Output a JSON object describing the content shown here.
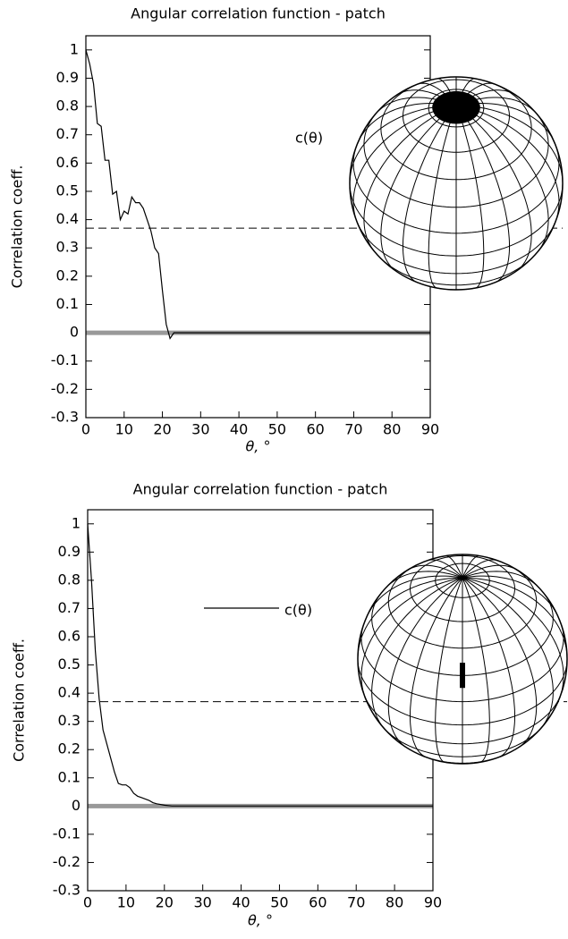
{
  "chart_data": [
    {
      "type": "line",
      "title": "Angular correlation function - patch",
      "xlabel": "θ, °",
      "ylabel": "Correlation coeff.",
      "xlim": [
        0,
        90
      ],
      "ylim": [
        -0.3,
        1.05
      ],
      "xticks": [
        0,
        10,
        20,
        30,
        40,
        50,
        60,
        70,
        80,
        90
      ],
      "yticks": [
        1,
        0.9,
        0.8,
        0.7,
        0.6,
        0.5,
        0.4,
        0.3,
        0.2,
        0.1,
        0,
        -0.1,
        -0.2,
        -0.3
      ],
      "legend_line": false,
      "reference_lines": [
        {
          "y": 0.37,
          "style": "dashed",
          "color": "#000000"
        },
        {
          "y": 0,
          "style": "solid",
          "color": "#999999"
        }
      ],
      "series": [
        {
          "name": "c(θ)",
          "color": "#000000",
          "x": [
            0,
            1,
            2,
            3,
            4,
            5,
            6,
            7,
            8,
            9,
            10,
            11,
            12,
            13,
            14,
            15,
            16,
            17,
            18,
            19,
            20,
            21,
            22,
            23,
            90
          ],
          "values": [
            1.0,
            0.95,
            0.88,
            0.74,
            0.73,
            0.61,
            0.61,
            0.49,
            0.5,
            0.4,
            0.43,
            0.42,
            0.48,
            0.46,
            0.46,
            0.44,
            0.4,
            0.36,
            0.3,
            0.28,
            0.15,
            0.03,
            -0.02,
            0.0,
            0.0
          ]
        }
      ]
    },
    {
      "type": "line",
      "title": "Angular correlation function - patch",
      "xlabel": "θ, °",
      "ylabel": "Correlation coeff.",
      "xlim": [
        0,
        90
      ],
      "ylim": [
        -0.3,
        1.05
      ],
      "xticks": [
        0,
        10,
        20,
        30,
        40,
        50,
        60,
        70,
        80,
        90
      ],
      "yticks": [
        1,
        0.9,
        0.8,
        0.7,
        0.6,
        0.5,
        0.4,
        0.3,
        0.2,
        0.1,
        0,
        -0.1,
        -0.2,
        -0.3
      ],
      "legend_line": true,
      "reference_lines": [
        {
          "y": 0.37,
          "style": "dashed",
          "color": "#000000"
        },
        {
          "y": 0,
          "style": "solid",
          "color": "#999999"
        }
      ],
      "series": [
        {
          "name": "c(θ)",
          "color": "#000000",
          "x": [
            0,
            1,
            2,
            3,
            4,
            5,
            6,
            7,
            8,
            9,
            10,
            11,
            12,
            13,
            14,
            15,
            16,
            17,
            18,
            20,
            22,
            90
          ],
          "values": [
            1.0,
            0.8,
            0.55,
            0.38,
            0.27,
            0.22,
            0.17,
            0.12,
            0.08,
            0.075,
            0.075,
            0.065,
            0.045,
            0.035,
            0.03,
            0.025,
            0.02,
            0.012,
            0.008,
            0.003,
            0.0,
            0.0
          ]
        }
      ]
    }
  ]
}
